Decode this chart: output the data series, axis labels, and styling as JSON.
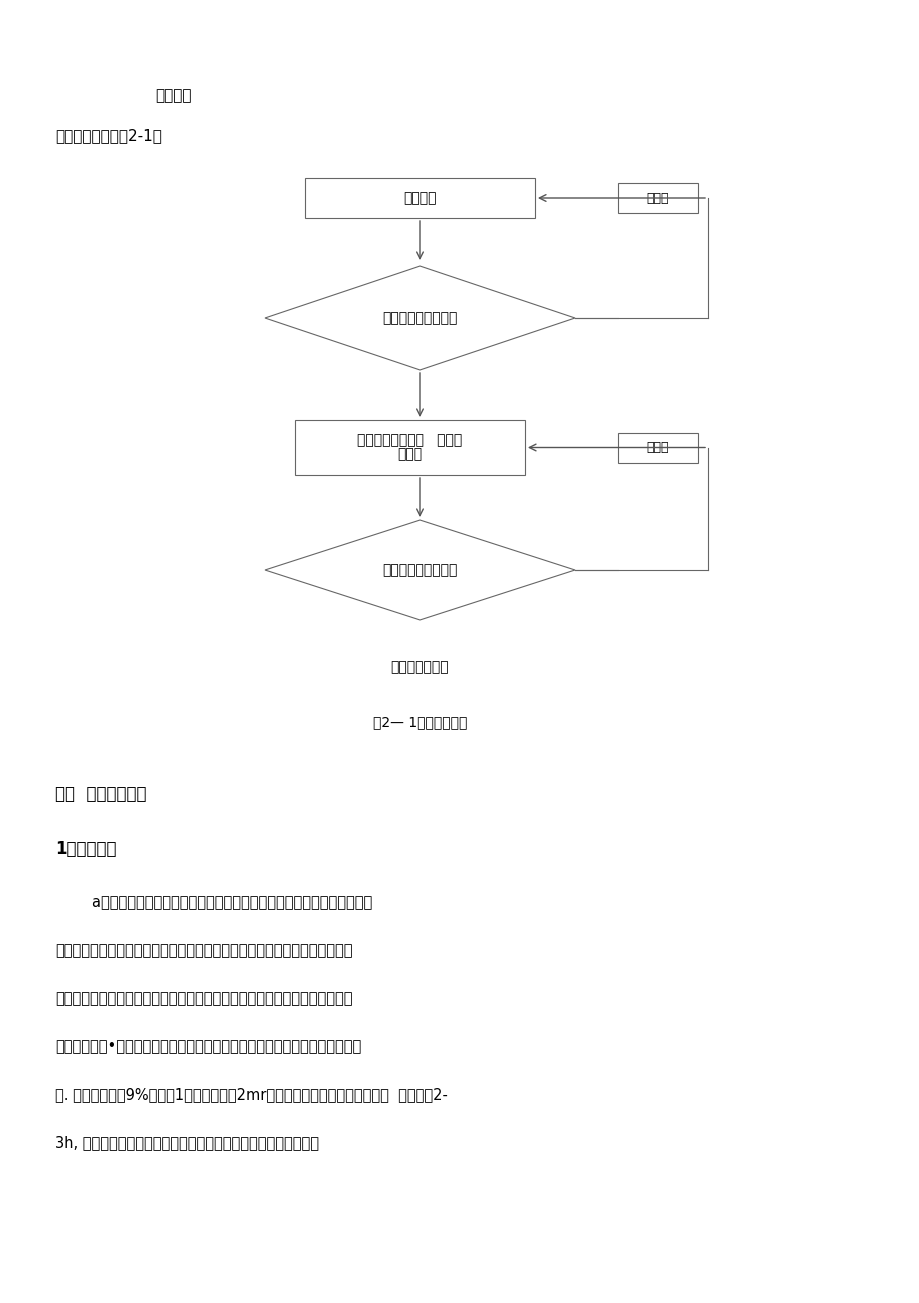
{
  "bg_color": "#ffffff",
  "page_width": 9.2,
  "page_height": 13.03,
  "section_title": "施工流程",
  "intro_text": "施工工艺流程见图2-1；",
  "flowchart": {
    "box1_text": "基层处理",
    "diamond1_text": "报技术员及监理检验",
    "box2_line1": "防水材料涂分层、   分块涂",
    "box2_line2": "刷施工",
    "diamond2_text": "报技术员及监理检验",
    "box3_text": "防水保护层施工",
    "reject_label": "不合格",
    "figure_caption": "图2— 1施工工艺流程"
  },
  "section3_title": "三、  施工过程控制",
  "section31_title": "1、基层处理",
  "para_lines": [
    "        a、防水层施工前，先将基层表面的尘土、砂浆等杂物清扫干净，基层表",
    "面的突出物应当从根部凿除，并在凿除部位用聚氨酯密封胶刮平密实；当基层",
    "表面有凹坑时，应先凿除坑内酥松表面，并用空压机吹扫，干燥后用聚氨酯密",
    "封胶填压密实•基层表面应当平整、坚实、干燥、无起皮、掉砂、油污等部位存",
    "在. 含水率不大于9%将面积1平方米、厚度2mr的橡胶板覆盖在基层表面，放置  在太阳下2-",
    "3h, 若所覆盖的基层表面无水印、紧贴基层一侧的橡胶板物凝结水"
  ]
}
